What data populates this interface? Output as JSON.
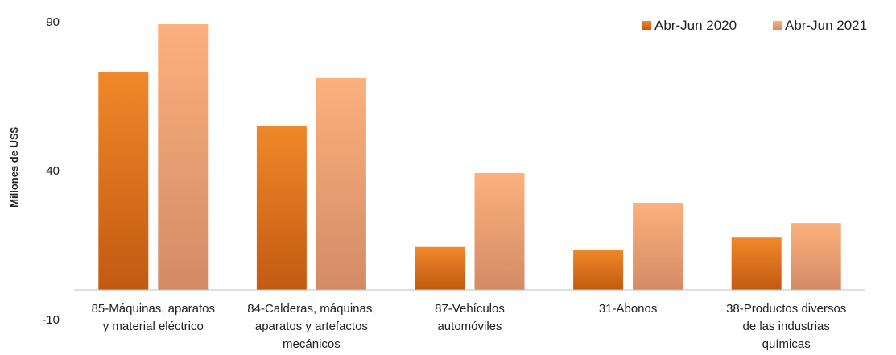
{
  "chart_data": {
    "type": "bar",
    "ylabel": "Millones de US$",
    "ylim": [
      -10,
      90
    ],
    "yticks": [
      "90",
      "40",
      "-10"
    ],
    "categories": [
      [
        "85-Máquinas, aparatos",
        "y material eléctrico"
      ],
      [
        "84-Calderas, máquinas,",
        "aparatos y artefactos",
        "mecánicos"
      ],
      [
        "87-Vehículos",
        "automóviles"
      ],
      [
        "31-Abonos"
      ],
      [
        "38-Productos diversos",
        "de las industrias",
        "químicas"
      ]
    ],
    "series": [
      {
        "name": "Abr-Jun 2020",
        "values": [
          73.2,
          54.9,
          14.4,
          13.4,
          17.5
        ],
        "color_top": "#F0882A",
        "color_bottom": "#C25A12"
      },
      {
        "name": "Abr-Jun 2021",
        "values": [
          89.2,
          71.1,
          39.2,
          29.2,
          22.4
        ],
        "color_top": "#FDB07E",
        "color_bottom": "#D48B65"
      }
    ],
    "legend_position": "top-right",
    "grid": false
  }
}
